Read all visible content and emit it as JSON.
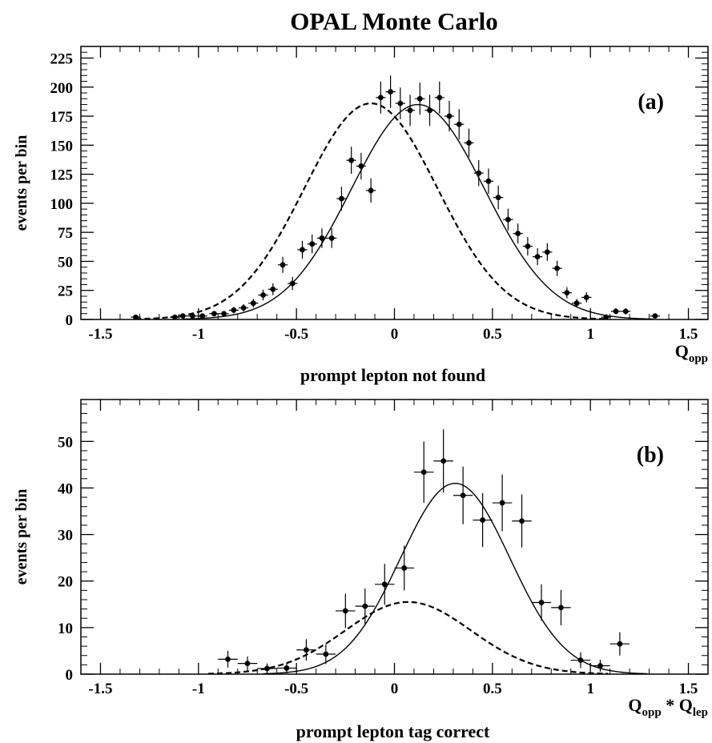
{
  "figure_title": "OPAL Monte Carlo",
  "chart_data": [
    {
      "type": "scatter",
      "panel_label": "(a)",
      "subtitle": "prompt lepton not found",
      "ylabel": "events per bin",
      "xlabel": {
        "base": "Q",
        "sub": "opp",
        "sep": "",
        "base2": "",
        "sub2": ""
      },
      "xlim": [
        -1.6,
        1.6
      ],
      "ylim": [
        0,
        235
      ],
      "xticks": [
        -1.5,
        -1,
        -0.5,
        0,
        0.5,
        1,
        1.5
      ],
      "xtick_labels": [
        "-1.5",
        "-1",
        "-0.5",
        "0",
        "0.5",
        "1",
        "1.5"
      ],
      "yticks": [
        0,
        25,
        50,
        75,
        100,
        125,
        150,
        175,
        200,
        225
      ],
      "ytick_labels": [
        "0",
        "25",
        "50",
        "75",
        "100",
        "125",
        "150",
        "175",
        "200",
        "225"
      ],
      "x_minor_step": 0.1,
      "y_minor_step": 5,
      "bin_halfwidth": 0.025,
      "points": [
        {
          "x": -1.32,
          "y": 2,
          "err": 1.5
        },
        {
          "x": -1.12,
          "y": 2,
          "err": 1.5
        },
        {
          "x": -1.08,
          "y": 3,
          "err": 1.7
        },
        {
          "x": -1.03,
          "y": 3,
          "err": 1.7
        },
        {
          "x": -0.98,
          "y": 3,
          "err": 1.7
        },
        {
          "x": -0.92,
          "y": 5,
          "err": 2.2
        },
        {
          "x": -0.87,
          "y": 5,
          "err": 2.2
        },
        {
          "x": -0.82,
          "y": 8,
          "err": 2.8
        },
        {
          "x": -0.77,
          "y": 10,
          "err": 3.2
        },
        {
          "x": -0.72,
          "y": 14,
          "err": 3.7
        },
        {
          "x": -0.67,
          "y": 21,
          "err": 4.6
        },
        {
          "x": -0.62,
          "y": 26,
          "err": 5.1
        },
        {
          "x": -0.57,
          "y": 47,
          "err": 6.9
        },
        {
          "x": -0.52,
          "y": 31,
          "err": 5.6
        },
        {
          "x": -0.47,
          "y": 60,
          "err": 7.7
        },
        {
          "x": -0.42,
          "y": 65,
          "err": 8.1
        },
        {
          "x": -0.37,
          "y": 70,
          "err": 8.4
        },
        {
          "x": -0.32,
          "y": 70,
          "err": 8.4
        },
        {
          "x": -0.27,
          "y": 104,
          "err": 10.2
        },
        {
          "x": -0.22,
          "y": 137,
          "err": 11.7
        },
        {
          "x": -0.17,
          "y": 132,
          "err": 11.5
        },
        {
          "x": -0.12,
          "y": 111,
          "err": 10.5
        },
        {
          "x": -0.07,
          "y": 191,
          "err": 13.8
        },
        {
          "x": -0.02,
          "y": 196,
          "err": 14.0
        },
        {
          "x": 0.03,
          "y": 186,
          "err": 13.6
        },
        {
          "x": 0.08,
          "y": 180,
          "err": 13.4
        },
        {
          "x": 0.13,
          "y": 190,
          "err": 13.8
        },
        {
          "x": 0.18,
          "y": 180,
          "err": 13.4
        },
        {
          "x": 0.23,
          "y": 191,
          "err": 13.8
        },
        {
          "x": 0.28,
          "y": 175,
          "err": 13.2
        },
        {
          "x": 0.33,
          "y": 168,
          "err": 13.0
        },
        {
          "x": 0.38,
          "y": 152,
          "err": 12.3
        },
        {
          "x": 0.43,
          "y": 126,
          "err": 11.2
        },
        {
          "x": 0.48,
          "y": 119,
          "err": 10.9
        },
        {
          "x": 0.53,
          "y": 105,
          "err": 10.2
        },
        {
          "x": 0.58,
          "y": 86,
          "err": 9.3
        },
        {
          "x": 0.63,
          "y": 74,
          "err": 8.6
        },
        {
          "x": 0.68,
          "y": 63,
          "err": 7.9
        },
        {
          "x": 0.73,
          "y": 54,
          "err": 7.3
        },
        {
          "x": 0.78,
          "y": 58,
          "err": 7.6
        },
        {
          "x": 0.83,
          "y": 44,
          "err": 6.6
        },
        {
          "x": 0.88,
          "y": 23,
          "err": 4.8
        },
        {
          "x": 0.93,
          "y": 14,
          "err": 3.7
        },
        {
          "x": 0.98,
          "y": 19,
          "err": 4.4
        },
        {
          "x": 1.08,
          "y": 2,
          "err": 1.5
        },
        {
          "x": 1.13,
          "y": 7,
          "err": 2.6
        },
        {
          "x": 1.18,
          "y": 7,
          "err": 2.6
        },
        {
          "x": 1.33,
          "y": 3,
          "err": 1.7
        }
      ],
      "solid_curve": {
        "amp": 185,
        "mu": 0.12,
        "sigma": 0.34
      },
      "dashed_curve": {
        "amp": 186,
        "mu": -0.12,
        "sigma": 0.34
      }
    },
    {
      "type": "scatter",
      "panel_label": "(b)",
      "subtitle": "prompt lepton tag correct",
      "ylabel": "events per bin",
      "xlabel": {
        "base": "Q",
        "sub": "opp",
        "sep": " * ",
        "base2": "Q",
        "sub2": "lep"
      },
      "xlim": [
        -1.6,
        1.6
      ],
      "ylim": [
        0,
        59
      ],
      "xticks": [
        -1.5,
        -1,
        -0.5,
        0,
        0.5,
        1,
        1.5
      ],
      "xtick_labels": [
        "-1.5",
        "-1",
        "-0.5",
        "0",
        "0.5",
        "1",
        "1.5"
      ],
      "yticks": [
        0,
        10,
        20,
        30,
        40,
        50
      ],
      "ytick_labels": [
        "0",
        "10",
        "20",
        "30",
        "40",
        "50"
      ],
      "x_minor_step": 0.1,
      "y_minor_step": 2,
      "bin_halfwidth": 0.05,
      "points": [
        {
          "x": -0.85,
          "y": 3.2,
          "err": 1.8
        },
        {
          "x": -0.75,
          "y": 2.3,
          "err": 1.5
        },
        {
          "x": -0.65,
          "y": 1.2,
          "err": 1.1
        },
        {
          "x": -0.55,
          "y": 1.3,
          "err": 1.1
        },
        {
          "x": -0.45,
          "y": 5.2,
          "err": 2.3
        },
        {
          "x": -0.35,
          "y": 4.3,
          "err": 2.1
        },
        {
          "x": -0.25,
          "y": 13.6,
          "err": 3.7
        },
        {
          "x": -0.15,
          "y": 14.6,
          "err": 3.8
        },
        {
          "x": -0.05,
          "y": 19.3,
          "err": 4.4
        },
        {
          "x": 0.05,
          "y": 22.8,
          "err": 4.8
        },
        {
          "x": 0.15,
          "y": 43.4,
          "err": 6.6
        },
        {
          "x": 0.25,
          "y": 45.8,
          "err": 6.8
        },
        {
          "x": 0.35,
          "y": 38.4,
          "err": 6.2
        },
        {
          "x": 0.45,
          "y": 33.1,
          "err": 5.8
        },
        {
          "x": 0.55,
          "y": 36.8,
          "err": 6.1
        },
        {
          "x": 0.65,
          "y": 32.9,
          "err": 5.7
        },
        {
          "x": 0.75,
          "y": 15.4,
          "err": 3.9
        },
        {
          "x": 0.85,
          "y": 14.3,
          "err": 3.8
        },
        {
          "x": 0.95,
          "y": 3.0,
          "err": 1.7
        },
        {
          "x": 1.05,
          "y": 1.8,
          "err": 1.3
        },
        {
          "x": 1.15,
          "y": 6.5,
          "err": 2.5
        }
      ],
      "solid_curve": {
        "amp": 41,
        "mu": 0.31,
        "sigma": 0.28
      },
      "dashed_curve": {
        "amp": 15.5,
        "mu": 0.07,
        "sigma": 0.32
      }
    }
  ]
}
